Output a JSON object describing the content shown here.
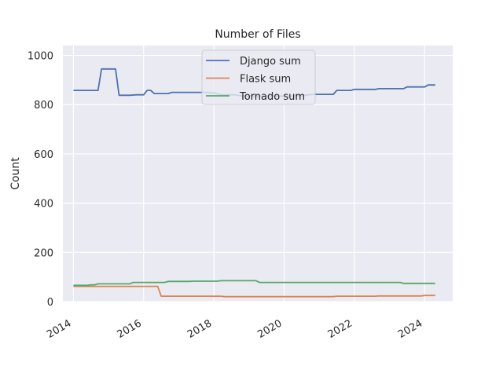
{
  "chart_data": {
    "type": "line",
    "title": "Number of Files",
    "xlabel": "",
    "ylabel": "Count",
    "xlim": [
      2013.7,
      2024.8
    ],
    "ylim": [
      0,
      1040
    ],
    "x_ticks": [
      2014,
      2016,
      2018,
      2020,
      2022,
      2024
    ],
    "x_tick_labels": [
      "2014",
      "2016",
      "2018",
      "2020",
      "2022",
      "2024"
    ],
    "y_ticks": [
      0,
      200,
      400,
      600,
      800,
      1000
    ],
    "y_tick_labels": [
      "0",
      "200",
      "400",
      "600",
      "800",
      "1000"
    ],
    "grid": true,
    "legend_position": "upper-center",
    "colors": {
      "background": "#eaeaf2",
      "grid": "#ffffff",
      "django": "#4c72b0",
      "flask": "#dd8452",
      "tornado": "#55a868"
    },
    "series": [
      {
        "name": "Django sum",
        "color": "#4c72b0",
        "points": [
          [
            2014.0,
            858
          ],
          [
            2014.7,
            858
          ],
          [
            2014.8,
            945
          ],
          [
            2015.2,
            945
          ],
          [
            2015.3,
            838
          ],
          [
            2015.6,
            838
          ],
          [
            2015.8,
            840
          ],
          [
            2016.0,
            840
          ],
          [
            2016.1,
            858
          ],
          [
            2016.2,
            858
          ],
          [
            2016.3,
            845
          ],
          [
            2016.7,
            845
          ],
          [
            2016.8,
            850
          ],
          [
            2017.8,
            850
          ],
          [
            2017.9,
            848
          ],
          [
            2018.0,
            848
          ],
          [
            2018.2,
            840
          ],
          [
            2018.6,
            840
          ],
          [
            2018.8,
            835
          ],
          [
            2019.5,
            835
          ],
          [
            2020.2,
            835
          ],
          [
            2020.6,
            838
          ],
          [
            2020.8,
            842
          ],
          [
            2021.4,
            842
          ],
          [
            2021.5,
            858
          ],
          [
            2021.9,
            858
          ],
          [
            2022.0,
            862
          ],
          [
            2022.6,
            862
          ],
          [
            2022.7,
            865
          ],
          [
            2023.4,
            865
          ],
          [
            2023.5,
            872
          ],
          [
            2024.0,
            872
          ],
          [
            2024.1,
            880
          ],
          [
            2024.3,
            880
          ]
        ]
      },
      {
        "name": "Flask sum",
        "color": "#dd8452",
        "points": [
          [
            2014.0,
            62
          ],
          [
            2016.4,
            62
          ],
          [
            2016.5,
            22
          ],
          [
            2018.2,
            22
          ],
          [
            2018.3,
            20
          ],
          [
            2021.4,
            20
          ],
          [
            2021.5,
            22
          ],
          [
            2022.6,
            22
          ],
          [
            2022.7,
            23
          ],
          [
            2023.9,
            23
          ],
          [
            2024.0,
            25
          ],
          [
            2024.3,
            25
          ]
        ]
      },
      {
        "name": "Tornado sum",
        "color": "#55a868",
        "points": [
          [
            2014.0,
            66
          ],
          [
            2014.4,
            66
          ],
          [
            2014.5,
            68
          ],
          [
            2014.6,
            68
          ],
          [
            2014.7,
            72
          ],
          [
            2015.6,
            72
          ],
          [
            2015.7,
            78
          ],
          [
            2016.6,
            78
          ],
          [
            2016.7,
            82
          ],
          [
            2017.3,
            82
          ],
          [
            2017.4,
            83
          ],
          [
            2018.1,
            83
          ],
          [
            2018.2,
            85
          ],
          [
            2019.2,
            85
          ],
          [
            2019.3,
            78
          ],
          [
            2023.3,
            78
          ],
          [
            2023.4,
            74
          ],
          [
            2024.3,
            74
          ]
        ]
      }
    ]
  }
}
